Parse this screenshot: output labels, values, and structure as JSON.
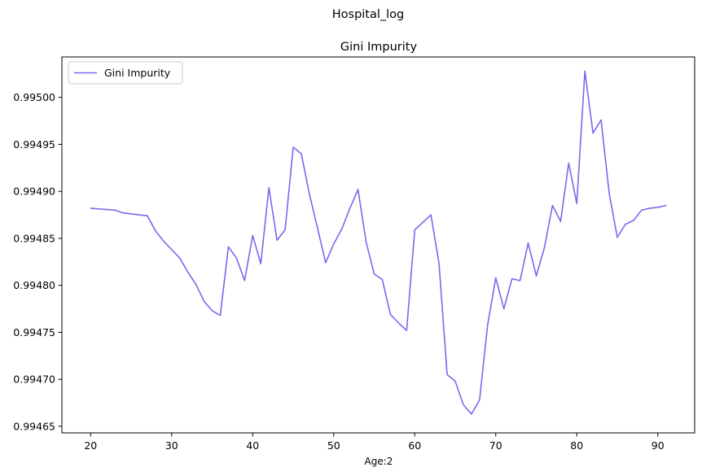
{
  "figure": {
    "suptitle": "Hospital_log"
  },
  "chart_data": {
    "type": "line",
    "title": "Gini Impurity",
    "xlabel": "Age:2",
    "ylabel": "",
    "xlim": [
      16.45,
      94.55
    ],
    "ylim": [
      0.994643,
      0.995043
    ],
    "xticks": [
      20,
      30,
      40,
      50,
      60,
      70,
      80,
      90
    ],
    "xtick_labels": [
      "20",
      "30",
      "40",
      "50",
      "60",
      "70",
      "80",
      "90"
    ],
    "yticks": [
      0.99465,
      0.9947,
      0.99475,
      0.9948,
      0.99485,
      0.9949,
      0.99495,
      0.995
    ],
    "ytick_labels": [
      "0.99465",
      "0.99470",
      "0.99475",
      "0.99480",
      "0.99485",
      "0.99490",
      "0.99495",
      "0.99500"
    ],
    "grid": false,
    "legend": {
      "position": "upper-left",
      "entries": [
        "Gini Impurity"
      ]
    },
    "series": [
      {
        "name": "Gini Impurity",
        "color": "#7b68ee",
        "x": [
          20,
          23,
          24,
          26,
          27,
          28,
          29,
          30,
          31,
          32,
          33,
          34,
          35,
          36,
          37,
          38,
          39,
          40,
          41,
          42,
          43,
          44,
          45,
          46,
          47,
          48,
          49,
          50,
          51,
          52,
          53,
          54,
          55,
          56,
          57,
          58,
          59,
          60,
          62,
          63,
          64,
          65,
          66,
          67,
          68,
          69,
          70,
          71,
          72,
          73,
          74,
          75,
          76,
          77,
          78,
          79,
          80,
          81,
          82,
          83,
          84,
          85,
          86,
          87,
          88,
          89,
          90,
          91
        ],
        "y": [
          0.994882,
          0.99488,
          0.994877,
          0.994875,
          0.994874,
          0.994858,
          0.994847,
          0.994838,
          0.994829,
          0.994814,
          0.994801,
          0.994783,
          0.994773,
          0.994768,
          0.994841,
          0.994829,
          0.994805,
          0.994853,
          0.994823,
          0.994904,
          0.994848,
          0.994859,
          0.994947,
          0.99494,
          0.994897,
          0.994861,
          0.994824,
          0.994844,
          0.99486,
          0.994882,
          0.994902,
          0.994846,
          0.994812,
          0.994806,
          0.994769,
          0.99476,
          0.994752,
          0.994859,
          0.994875,
          0.994823,
          0.994705,
          0.994698,
          0.994673,
          0.994663,
          0.994678,
          0.994758,
          0.994808,
          0.994775,
          0.994807,
          0.994805,
          0.994845,
          0.99481,
          0.99484,
          0.994885,
          0.994868,
          0.99493,
          0.994887,
          0.995028,
          0.994962,
          0.994976,
          0.994898,
          0.994851,
          0.994865,
          0.994869,
          0.99488,
          0.994882,
          0.994883,
          0.994885
        ]
      }
    ]
  }
}
